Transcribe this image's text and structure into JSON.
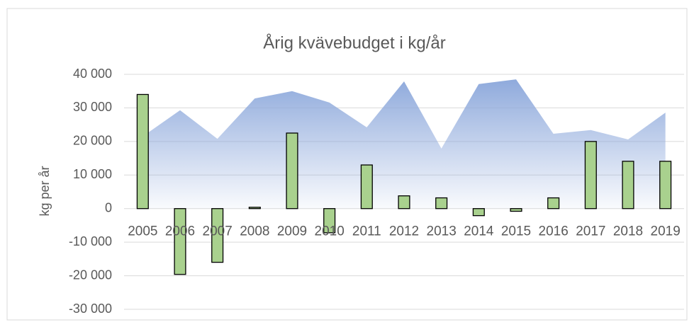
{
  "chart_data": {
    "type": "bar",
    "title": "Årig kvävebudget i kg/år",
    "y_label": "kg per år",
    "categories": [
      "2005",
      "2006",
      "2007",
      "2008",
      "2009",
      "2010",
      "2011",
      "2012",
      "2013",
      "2014",
      "2015",
      "2016",
      "2017",
      "2018",
      "2019"
    ],
    "series": [
      {
        "type": "area",
        "color": "#8faadc",
        "values": [
          21500,
          29300,
          20800,
          32800,
          35000,
          31600,
          24200,
          37900,
          17900,
          37100,
          38500,
          22300,
          23400,
          20600,
          28600
        ]
      },
      {
        "type": "bar",
        "color": "#a9d18e",
        "values": [
          34000,
          -19600,
          -16000,
          400,
          22500,
          -7200,
          13000,
          3800,
          3200,
          -2100,
          -800,
          3200,
          20000,
          14100,
          14100
        ]
      }
    ],
    "ylim": [
      -30000,
      40000
    ],
    "yticks": [
      {
        "value": 40000,
        "label": "40 000"
      },
      {
        "value": 30000,
        "label": "30 000"
      },
      {
        "value": 20000,
        "label": "20 000"
      },
      {
        "value": 10000,
        "label": "10 000"
      },
      0,
      {
        "value": -10000,
        "label": "-10 000"
      },
      {
        "value": -20000,
        "label": "-20 000"
      },
      {
        "value": -30000,
        "label": "-30 000"
      }
    ],
    "grid": true
  }
}
